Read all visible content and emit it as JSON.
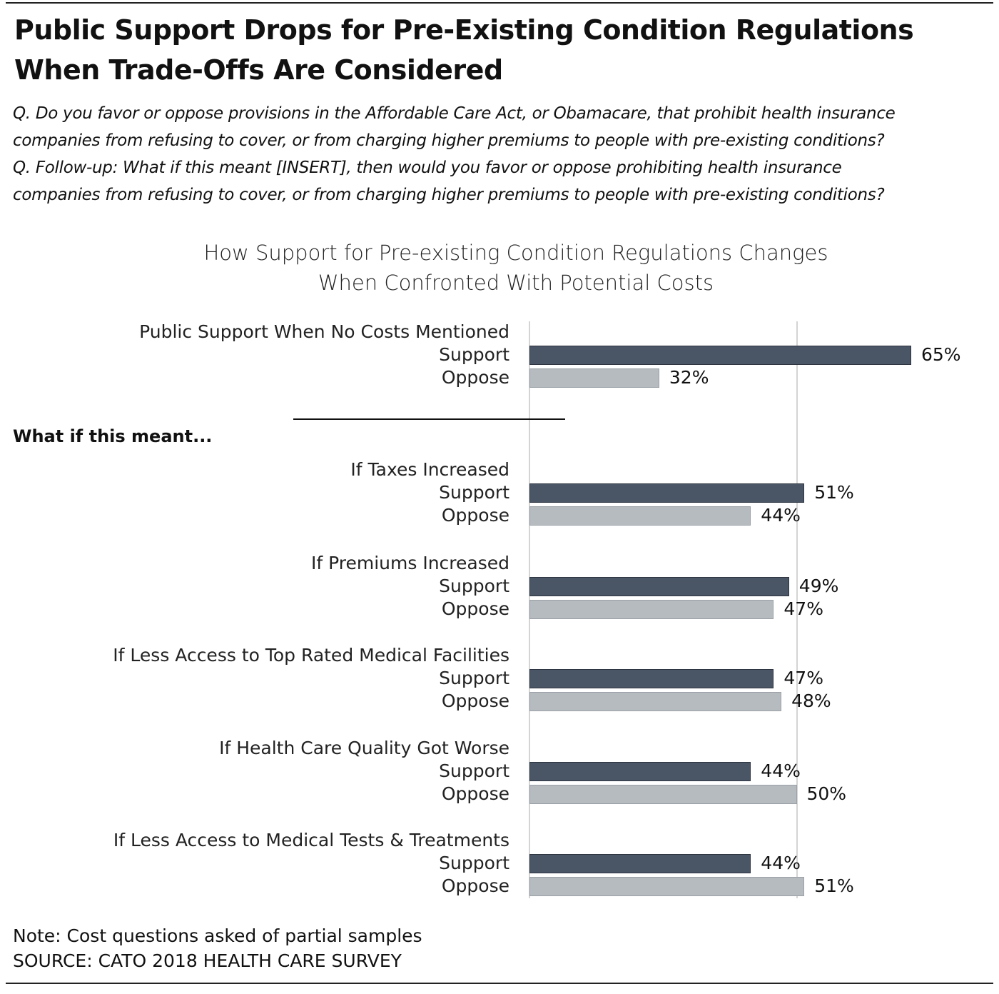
{
  "title": "Public Support Drops for Pre-Existing Condition Regulations When Trade-Offs Are Considered",
  "questions": [
    "Q. Do you favor or oppose provisions in the Affordable Care Act, or Obamacare, that prohibit health insurance",
    "companies from refusing to cover, or from charging higher premiums to people with pre-existing conditions?",
    "Q. Follow-up: What if this meant [INSERT], then would you favor or oppose prohibiting health insurance",
    "companies from refusing to cover, or from charging higher premiums to people with pre-existing conditions?"
  ],
  "section_label": "What if this meant...",
  "note": "Note: Cost questions asked of partial samples",
  "source": "SOURCE: CATO 2018 HEALTH CARE SURVEY",
  "chart_data": {
    "type": "bar",
    "orientation": "horizontal",
    "title_lines": [
      "How Support for Pre-existing Condition Regulations Changes",
      "When Confronted With Potential Costs"
    ],
    "xlim": [
      15,
      65
    ],
    "gridlines": [
      50
    ],
    "series_labels": [
      "Support",
      "Oppose"
    ],
    "colors": {
      "Support": "#4a5566",
      "Oppose": "#b6bbc0"
    },
    "groups": [
      {
        "label": "Public Support When No Costs Mentioned",
        "support": 65,
        "oppose": 32
      },
      {
        "label": "If Taxes Increased",
        "support": 51,
        "oppose": 44
      },
      {
        "label": "If Premiums Increased",
        "support": 49,
        "oppose": 47
      },
      {
        "label": "If Less Access to Top Rated Medical Facilities",
        "support": 47,
        "oppose": 48
      },
      {
        "label": "If Health Care Quality Got Worse",
        "support": 44,
        "oppose": 50
      },
      {
        "label": "If Less Access to Medical Tests & Treatments",
        "support": 44,
        "oppose": 51
      }
    ]
  }
}
